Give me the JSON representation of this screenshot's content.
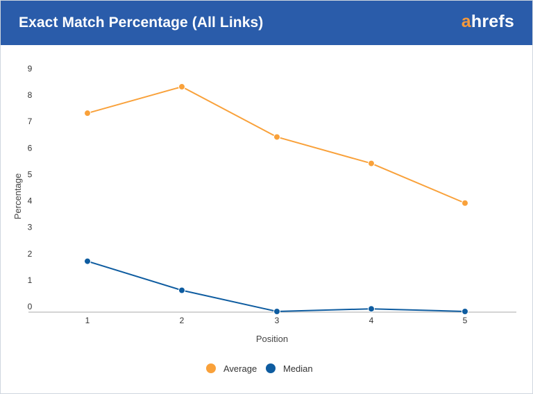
{
  "header": {
    "title": "Exact Match Percentage (All Links)",
    "brand_first": "a",
    "brand_rest": "hrefs"
  },
  "chart_data": {
    "type": "line",
    "title": "Exact Match Percentage (All Links)",
    "xlabel": "Position",
    "ylabel": "Percentage",
    "x": [
      1,
      2,
      3,
      4,
      5
    ],
    "xtick_labels": [
      "1",
      "2",
      "3",
      "4",
      "5"
    ],
    "ytick_labels": [
      "0",
      "1",
      "2",
      "3",
      "4",
      "5",
      "6",
      "7",
      "8",
      "9"
    ],
    "ylim": [
      0,
      9
    ],
    "grid": false,
    "legend_position": "bottom",
    "series": [
      {
        "name": "Average",
        "color": "#f9a13a",
        "values": [
          7.5,
          8.5,
          6.6,
          5.6,
          4.1
        ]
      },
      {
        "name": "Median",
        "color": "#0e5ca0",
        "values": [
          1.9,
          0.8,
          0.0,
          0.1,
          0.0
        ]
      }
    ]
  },
  "colors": {
    "header_bg": "#2a5caa",
    "brand_accent": "#f5993b"
  }
}
